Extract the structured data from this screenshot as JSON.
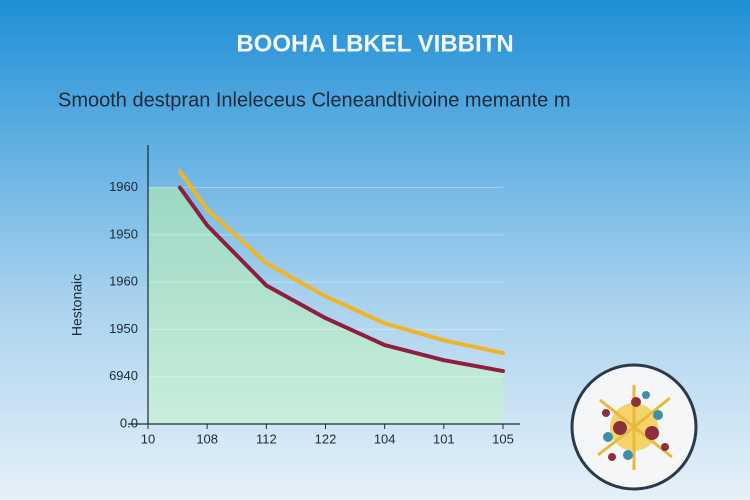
{
  "chart_data": {
    "type": "line",
    "title": "BOOHA LBKEL VIBBITN",
    "subtitle": "Smooth destpran Inleleceus Cleneandtivioine memante m",
    "y_label": "Hestonaic",
    "x": [
      0.54,
      1,
      2,
      3,
      4,
      5,
      6
    ],
    "series": [
      {
        "name": "yellow",
        "color": "#f0b429",
        "values": [
          5.34,
          4.54,
          3.4,
          2.7,
          2.13,
          1.77,
          1.5
        ]
      },
      {
        "name": "red",
        "color": "#8e1f3c",
        "values": [
          5.0,
          4.2,
          2.93,
          2.24,
          1.67,
          1.35,
          1.12
        ]
      }
    ],
    "xlim": [
      0,
      6
    ],
    "xticks": [
      {
        "value": 0,
        "label": "10"
      },
      {
        "value": 1,
        "label": "108"
      },
      {
        "value": 2,
        "label": "112"
      },
      {
        "value": 3,
        "label": "122"
      },
      {
        "value": 4,
        "label": "104"
      },
      {
        "value": 5,
        "label": "101"
      },
      {
        "value": 6,
        "label": "105"
      }
    ],
    "ylim": [
      0,
      5.9
    ],
    "yticks": [
      {
        "value": 0,
        "label": "0.0"
      },
      {
        "value": 1,
        "label": "6940"
      },
      {
        "value": 2,
        "label": "1950"
      },
      {
        "value": 3,
        "label": "1960"
      },
      {
        "value": 4,
        "label": "1950"
      },
      {
        "value": 5,
        "label": "1960"
      }
    ],
    "grid": true
  }
}
